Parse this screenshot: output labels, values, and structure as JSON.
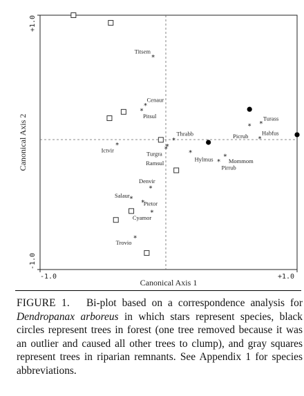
{
  "chart_data": {
    "type": "scatter",
    "title": "",
    "xlabel": "Canonical Axis 1",
    "ylabel": "Canonical Axis 2",
    "xlim": [
      -1.0,
      1.0
    ],
    "ylim": [
      -1.0,
      1.0
    ],
    "x_ticks": [
      {
        "value": -1.0,
        "label": "-1.0"
      },
      {
        "value": 1.0,
        "label": "+1.0"
      }
    ],
    "y_ticks": [
      {
        "value": 1.0,
        "label": "+1.0"
      },
      {
        "value": -1.0,
        "label": "-1.0"
      }
    ],
    "reference_lines": {
      "x": 0.0,
      "y": 0.0,
      "style": "dashed"
    },
    "series": [
      {
        "marker": "star",
        "points": [
          {
            "label": "Titsem",
            "x": -0.12,
            "y": 0.67
          },
          {
            "label": "Cenaur",
            "x": -0.18,
            "y": 0.29
          },
          {
            "label": "Pitsul",
            "x": -0.21,
            "y": 0.25
          },
          {
            "label": "Thrabb",
            "x": 0.04,
            "y": 0.02
          },
          {
            "label": "Ictvir",
            "x": -0.4,
            "y": -0.02
          },
          {
            "label": "Turgra",
            "x": -0.01,
            "y": -0.03
          },
          {
            "label": "Ramsul",
            "x": -0.02,
            "y": -0.05
          },
          {
            "label": "Hylmus",
            "x": 0.17,
            "y": -0.08
          },
          {
            "label": "Mommom",
            "x": 0.44,
            "y": -0.11
          },
          {
            "label": "Pirrub",
            "x": 0.39,
            "y": -0.15
          },
          {
            "label": "Picrub",
            "x": 0.63,
            "y": 0.13
          },
          {
            "label": "Turass",
            "x": 0.72,
            "y": 0.15
          },
          {
            "label": "Habfus",
            "x": 0.71,
            "y": 0.03
          },
          {
            "label": "Denvir",
            "x": -0.14,
            "y": -0.36
          },
          {
            "label": "Salaur",
            "x": -0.29,
            "y": -0.44
          },
          {
            "label": "Ptetor",
            "x": -0.2,
            "y": -0.47
          },
          {
            "label": "Cyamor",
            "x": -0.13,
            "y": -0.55
          },
          {
            "label": "Trovio",
            "x": -0.26,
            "y": -0.75
          }
        ]
      },
      {
        "marker": "black-circle",
        "points": [
          {
            "x": 0.31,
            "y": 0.0
          },
          {
            "x": 0.63,
            "y": 0.26
          },
          {
            "x": 1.0,
            "y": 0.06
          }
        ]
      },
      {
        "marker": "gray-square",
        "points": [
          {
            "x": -0.74,
            "y": 1.0
          },
          {
            "x": -0.45,
            "y": 0.94
          },
          {
            "x": -0.35,
            "y": 0.24
          },
          {
            "x": -0.46,
            "y": 0.19
          },
          {
            "x": -0.06,
            "y": 0.02
          },
          {
            "x": 0.06,
            "y": -0.22
          },
          {
            "x": -0.29,
            "y": -0.54
          },
          {
            "x": -0.41,
            "y": -0.61
          },
          {
            "x": -0.17,
            "y": -0.87
          }
        ]
      }
    ]
  },
  "caption": {
    "figure_number": "FIGURE 1.",
    "before_species": "Bi-plot based on a correspondence analysis for",
    "species": "Dendropanax arboreus",
    "after_species": "in which stars represent species, black circles represent trees in forest (one tree removed because it was an outlier and caused all other trees to clump), and gray squares represent trees in riparian remnants. See Appendix 1 for species abbreviations."
  }
}
